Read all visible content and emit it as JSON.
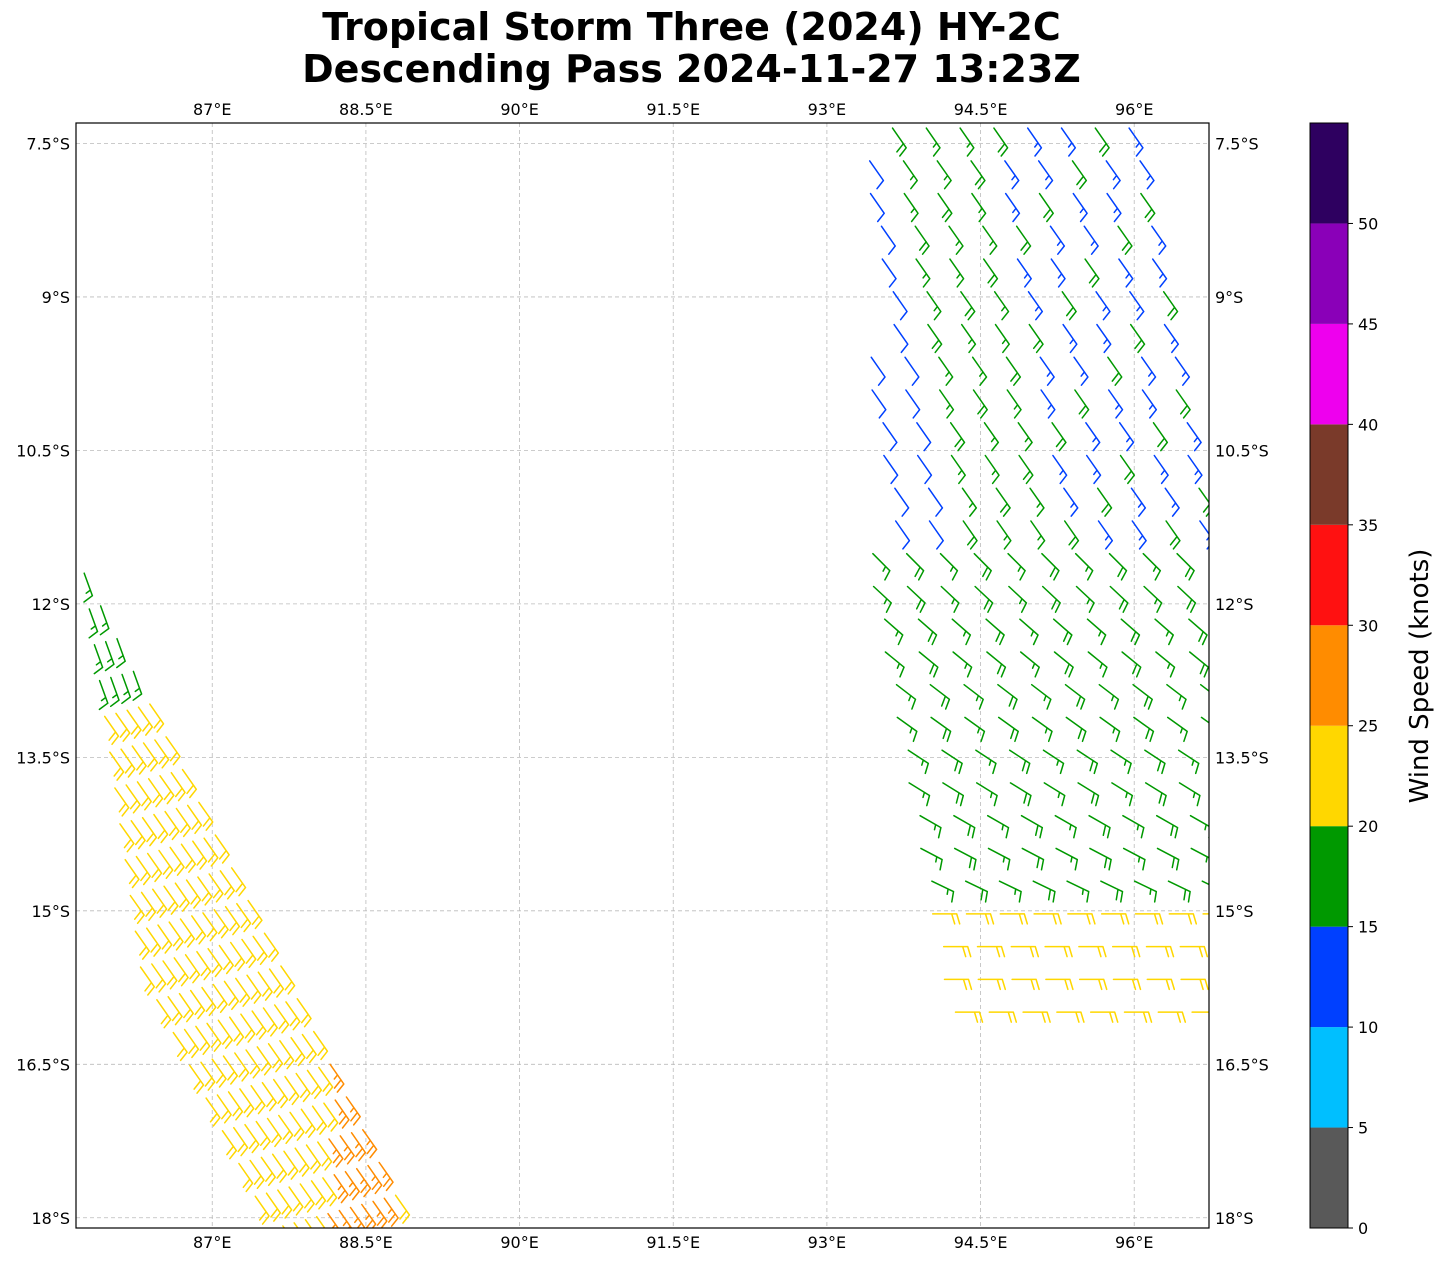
{
  "title_line1": "Tropical Storm Three (2024) HY-2C",
  "title_line2": "Descending Pass 2024-11-27 13:23Z",
  "map": {
    "lon_range": [
      85.67,
      96.73
    ],
    "lat_range": [
      -18.1,
      -7.3
    ],
    "lon_ticks": [
      87,
      88.5,
      90,
      91.5,
      93,
      94.5,
      96
    ],
    "lon_tick_labels": [
      "87°E",
      "88.5°E",
      "90°E",
      "91.5°E",
      "93°E",
      "94.5°E",
      "96°E"
    ],
    "lat_ticks": [
      -7.5,
      -9,
      -10.5,
      -12,
      -13.5,
      -15,
      -16.5,
      -18
    ],
    "lat_tick_labels": [
      "7.5°S",
      "9°S",
      "10.5°S",
      "12°S",
      "13.5°S",
      "15°S",
      "16.5°S",
      "18°S"
    ],
    "gridlines": true
  },
  "colorbar": {
    "label": "Wind Speed (knots)",
    "bounds": [
      0,
      5,
      10,
      15,
      20,
      25,
      30,
      35,
      40,
      45,
      50,
      55
    ],
    "tick_labels": [
      "0",
      "5",
      "10",
      "15",
      "20",
      "25",
      "30",
      "35",
      "40",
      "45",
      "50"
    ],
    "colors": [
      "#595959",
      "#00bfff",
      "#0040ff",
      "#009900",
      "#ffd700",
      "#ff8c00",
      "#ff1111",
      "#7a3a2a",
      "#ee00ee",
      "#8a00b8",
      "#2e0060"
    ]
  },
  "swaths": [
    {
      "name": "east",
      "lat_start": -7.3,
      "lat_end": -16.3
    },
    {
      "name": "west",
      "lat_start": -11.7,
      "lat_end": -18.1
    }
  ]
}
